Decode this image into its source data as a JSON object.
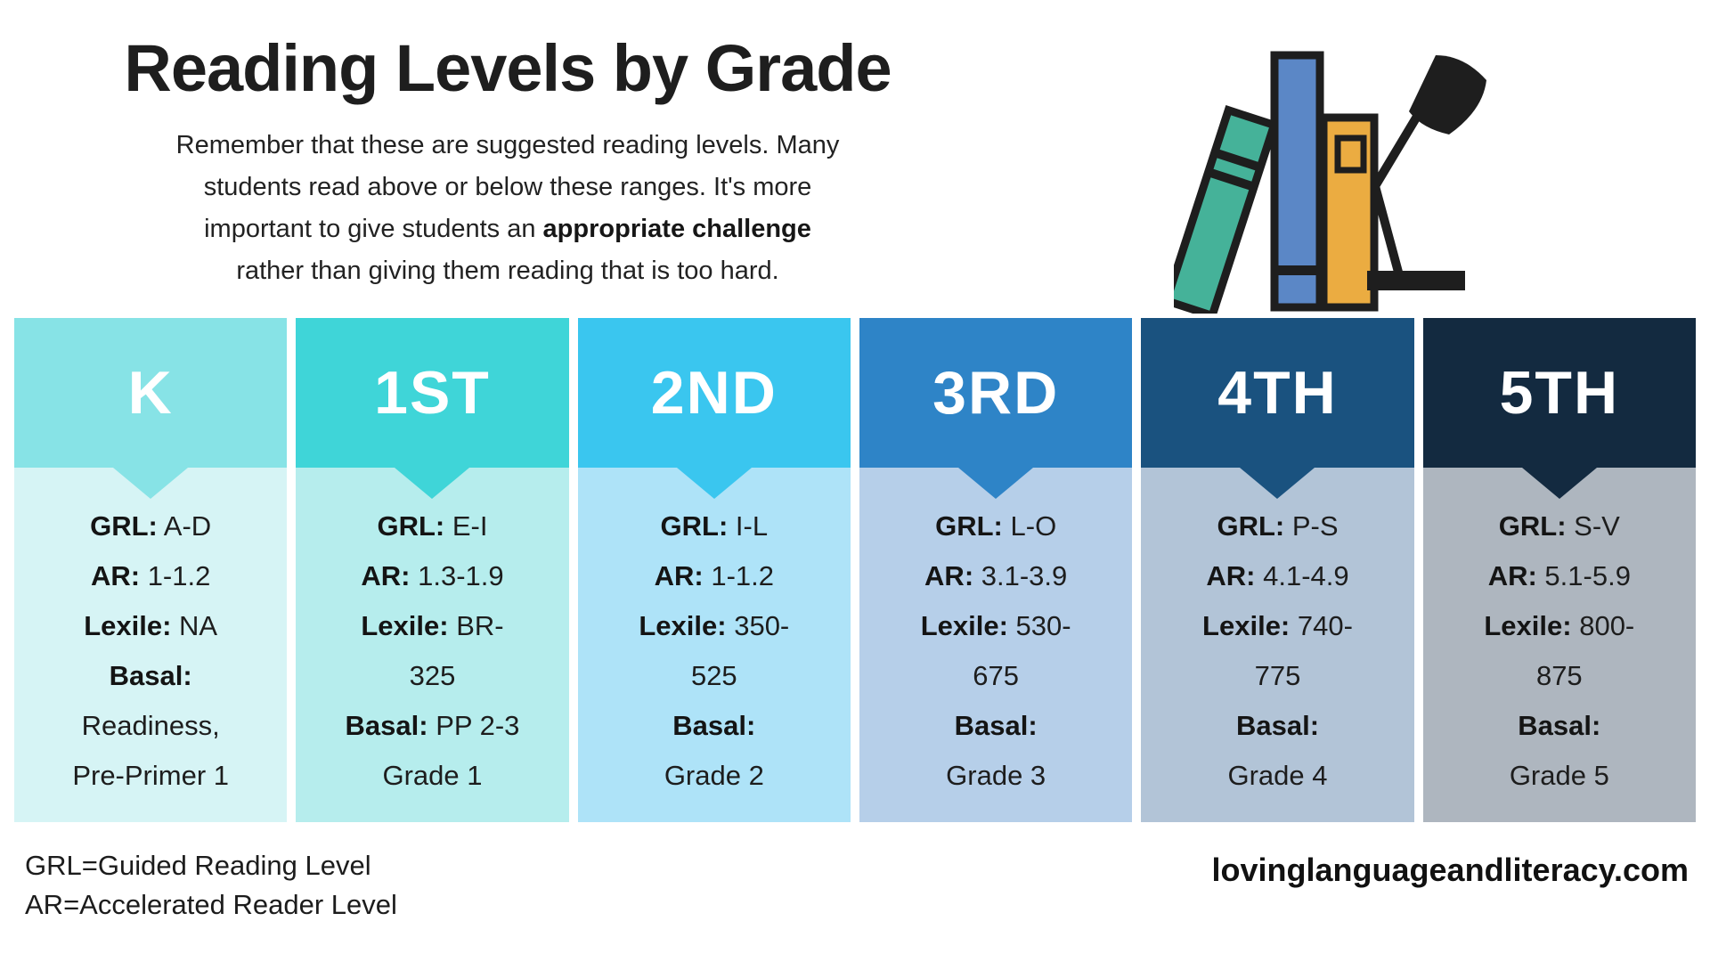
{
  "intro": {
    "title": "Reading Levels by Grade",
    "subtitle_lines": [
      [
        {
          "text": "Remember that these are suggested reading levels. Many"
        }
      ],
      [
        {
          "text": "students read above or below these ranges. It's more"
        }
      ],
      [
        {
          "text": "important to give students an "
        },
        {
          "text": "appropriate challenge",
          "bold": true
        }
      ],
      [
        {
          "text": "rather than giving them reading that is too hard."
        }
      ]
    ]
  },
  "illustration": {
    "description": "three books with a desk lamp",
    "colors": {
      "teal_book": "#45B299",
      "blue_book": "#5B87C6",
      "yellow_book": "#EBAC41",
      "outline": "#1E1E1E"
    }
  },
  "columns": [
    {
      "grade": "K",
      "header_color": "#87E3E6",
      "body_color": "#D6F4F5",
      "lines": [
        {
          "label": "GRL:",
          "value": "A-D"
        },
        {
          "label": "AR:",
          "value": "1-1.2"
        },
        {
          "label": "Lexile:",
          "value": "NA"
        },
        {
          "label": "Basal:",
          "value": ""
        },
        {
          "label": "",
          "value": "Readiness,"
        },
        {
          "label": "",
          "value": "Pre-Primer 1"
        }
      ]
    },
    {
      "grade": "1ST",
      "header_color": "#3FD5D8",
      "body_color": "#B6EDED",
      "lines": [
        {
          "label": "GRL:",
          "value": "E-I"
        },
        {
          "label": "AR:",
          "value": "1.3-1.9"
        },
        {
          "label": "Lexile:",
          "value": "BR-"
        },
        {
          "label": "",
          "value": "325"
        },
        {
          "label": "Basal:",
          "value": "PP 2-3"
        },
        {
          "label": "",
          "value": "Grade 1"
        }
      ]
    },
    {
      "grade": "2ND",
      "header_color": "#3AC6EF",
      "body_color": "#AEE3F8",
      "lines": [
        {
          "label": "GRL:",
          "value": "I-L"
        },
        {
          "label": "AR:",
          "value": "1-1.2"
        },
        {
          "label": "Lexile:",
          "value": "350-"
        },
        {
          "label": "",
          "value": "525"
        },
        {
          "label": "Basal:",
          "value": ""
        },
        {
          "label": "",
          "value": "Grade 2"
        }
      ]
    },
    {
      "grade": "3RD",
      "header_color": "#2E84C7",
      "body_color": "#B6CFE9",
      "lines": [
        {
          "label": "GRL:",
          "value": "L-O"
        },
        {
          "label": "AR:",
          "value": "3.1-3.9"
        },
        {
          "label": "Lexile:",
          "value": "530-"
        },
        {
          "label": "",
          "value": "675"
        },
        {
          "label": "Basal:",
          "value": ""
        },
        {
          "label": "",
          "value": "Grade 3"
        }
      ]
    },
    {
      "grade": "4TH",
      "header_color": "#1A527F",
      "body_color": "#B2C4D7",
      "lines": [
        {
          "label": "GRL:",
          "value": "P-S"
        },
        {
          "label": "AR:",
          "value": "4.1-4.9"
        },
        {
          "label": "Lexile:",
          "value": "740-"
        },
        {
          "label": "",
          "value": "775"
        },
        {
          "label": "Basal:",
          "value": ""
        },
        {
          "label": "",
          "value": "Grade 4"
        }
      ]
    },
    {
      "grade": "5TH",
      "header_color": "#132A40",
      "body_color": "#AEB6BF",
      "lines": [
        {
          "label": "GRL:",
          "value": "S-V"
        },
        {
          "label": "AR:",
          "value": "5.1-5.9"
        },
        {
          "label": "Lexile:",
          "value": "800-"
        },
        {
          "label": "",
          "value": "875"
        },
        {
          "label": "Basal:",
          "value": ""
        },
        {
          "label": "",
          "value": "Grade 5"
        }
      ]
    }
  ],
  "footer": {
    "legend_lines": [
      "GRL=Guided Reading Level",
      "AR=Accelerated Reader Level"
    ],
    "website": "lovinglanguageandliteracy.com"
  }
}
